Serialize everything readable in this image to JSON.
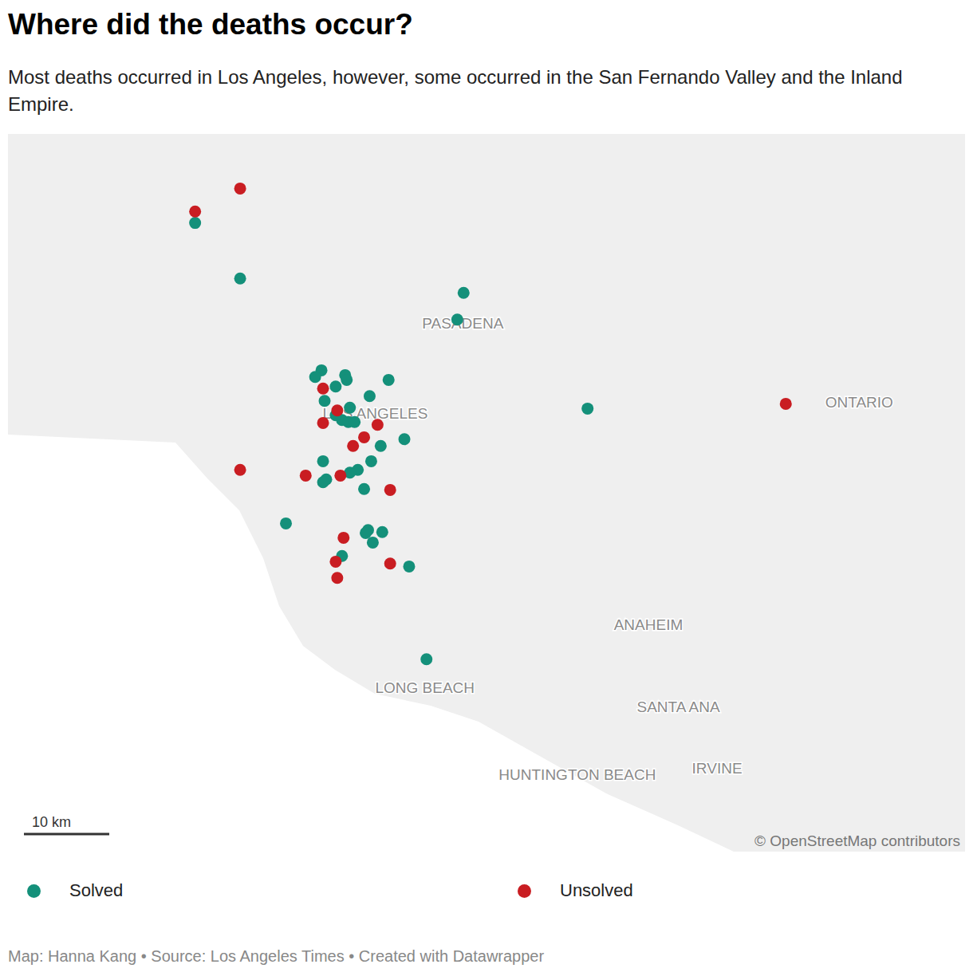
{
  "chart_data": {
    "type": "scatter",
    "title": "Where did the deaths occur?",
    "subtitle": "Most deaths occurred in Los Angeles, however, some occurred in the San Fernando Valley and the Inland Empire.",
    "xlim": [
      -118.725,
      -117.513
    ],
    "ylim": [
      33.593,
      34.343
    ],
    "tick_labels": false,
    "grid": false,
    "legend": "bottom",
    "series": [
      {
        "name": "Solved",
        "color": "#14907a",
        "x": [
          -118.488,
          -118.431,
          -118.148,
          -118.156,
          -118.328,
          -118.336,
          -118.298,
          -118.296,
          -118.243,
          -118.31,
          -118.324,
          -118.267,
          -118.292,
          -118.302,
          -118.294,
          -118.286,
          -117.991,
          -118.223,
          -118.253,
          -118.265,
          -118.326,
          -118.282,
          -118.292,
          -118.322,
          -118.326,
          -118.274,
          -118.373,
          -118.269,
          -118.272,
          -118.251,
          -118.263,
          -118.302,
          -118.217,
          -118.195,
          -118.31
        ],
        "y": [
          34.25,
          34.192,
          34.177,
          34.149,
          34.096,
          34.089,
          34.091,
          34.086,
          34.086,
          34.079,
          34.064,
          34.069,
          34.057,
          34.044,
          34.042,
          34.042,
          34.056,
          34.024,
          34.017,
          34.001,
          34.001,
          33.992,
          33.989,
          33.982,
          33.979,
          33.972,
          33.936,
          33.929,
          33.926,
          33.927,
          33.916,
          33.902,
          33.891,
          33.794,
          34.049
        ]
      },
      {
        "name": "Unsolved",
        "color": "#c91d22",
        "x": [
          -118.431,
          -118.488,
          -118.326,
          -118.308,
          -118.326,
          -118.257,
          -118.274,
          -118.288,
          -118.431,
          -118.348,
          -118.304,
          -118.241,
          -118.3,
          -118.31,
          -118.241,
          -118.308,
          -117.74
        ],
        "y": [
          34.286,
          34.262,
          34.077,
          34.054,
          34.041,
          34.039,
          34.026,
          34.017,
          33.992,
          33.986,
          33.986,
          33.971,
          33.921,
          33.896,
          33.894,
          33.879,
          34.061
        ]
      }
    ],
    "annotations": [
      {
        "text": "PASADENA",
        "x": -118.149,
        "y": 34.144
      },
      {
        "text": "LOS ANGELES",
        "x": -118.26,
        "y": 34.05
      },
      {
        "text": "ONTARIO",
        "x": -117.647,
        "y": 34.061
      },
      {
        "text": "ANAHEIM",
        "x": -117.914,
        "y": 33.829
      },
      {
        "text": "LONG BEACH",
        "x": -118.197,
        "y": 33.763
      },
      {
        "text": "SANTA ANA",
        "x": -117.876,
        "y": 33.743
      },
      {
        "text": "HUNTINGTON BEACH",
        "x": -118.004,
        "y": 33.672
      },
      {
        "text": "IRVINE",
        "x": -117.827,
        "y": 33.679
      }
    ],
    "scale_bar": "10 km",
    "attribution": "© OpenStreetMap contributors",
    "source": "Map: Hanna Kang • Source: Los Angeles Times • Created with Datawrapper"
  }
}
